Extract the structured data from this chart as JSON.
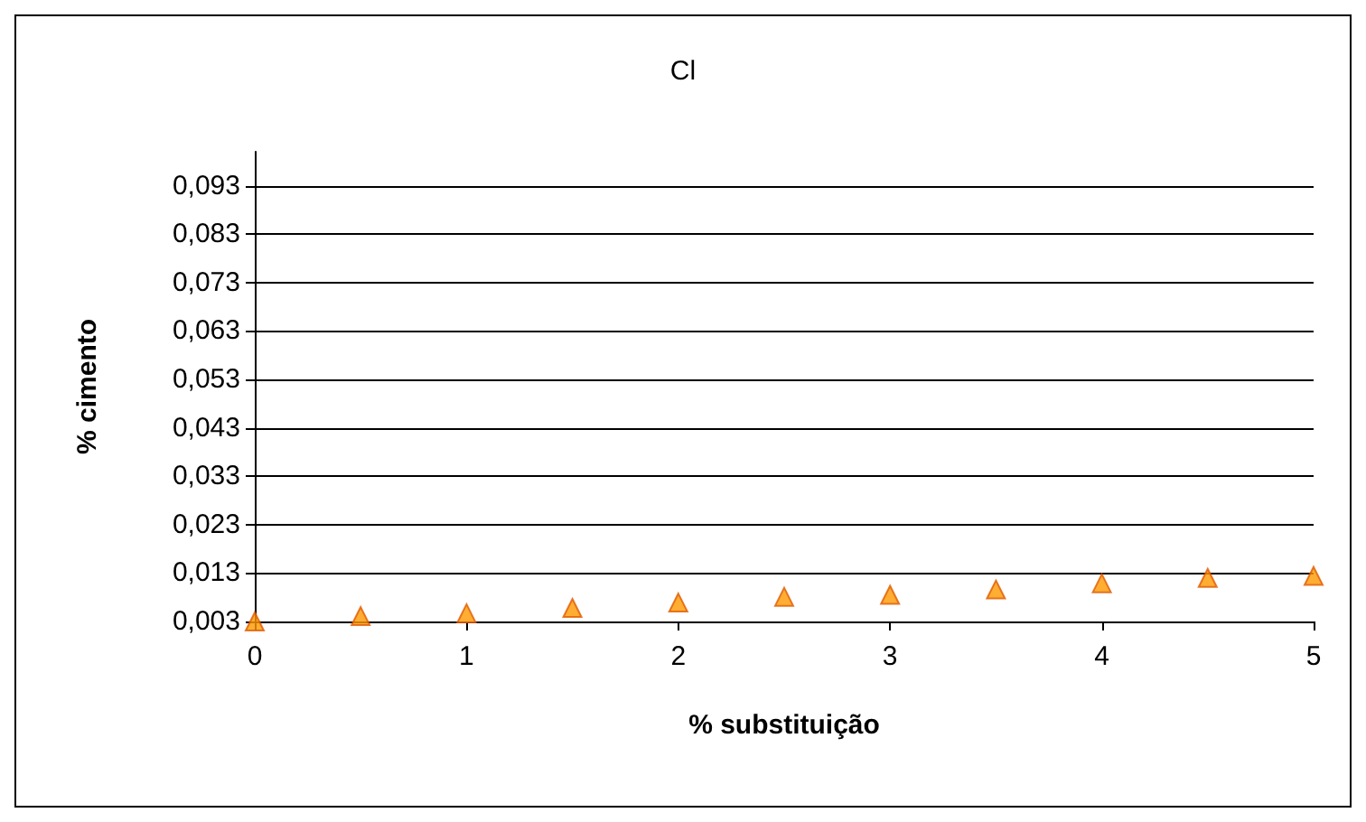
{
  "chart_data": {
    "type": "scatter",
    "title": "Cl",
    "xlabel": "% substituição",
    "ylabel": "% cimento",
    "x": [
      0,
      0.5,
      1,
      1.5,
      2,
      2.5,
      3,
      3.5,
      4,
      4.5,
      5
    ],
    "series": [
      {
        "color": "#ff9900",
        "values": [
          0.003,
          0.0041,
          0.0047,
          0.0058,
          0.0069,
          0.0081,
          0.0085,
          0.0096,
          0.0109,
          0.012,
          0.0124
        ]
      }
    ],
    "xlim": [
      0,
      5
    ],
    "xticks": [
      0,
      1,
      2,
      3,
      4,
      5
    ],
    "ylim": [
      0.003,
      0.1
    ],
    "yticks": [
      {
        "value": 0.003,
        "label": "0,003"
      },
      {
        "value": 0.013,
        "label": "0,013"
      },
      {
        "value": 0.023,
        "label": "0,023"
      },
      {
        "value": 0.033,
        "label": "0,033"
      },
      {
        "value": 0.043,
        "label": "0,043"
      },
      {
        "value": 0.053,
        "label": "0,053"
      },
      {
        "value": 0.063,
        "label": "0,063"
      },
      {
        "value": 0.073,
        "label": "0,073"
      },
      {
        "value": 0.083,
        "label": "0,083"
      },
      {
        "value": 0.093,
        "label": "0,093"
      }
    ],
    "grid": "y",
    "marker": "triangle"
  }
}
